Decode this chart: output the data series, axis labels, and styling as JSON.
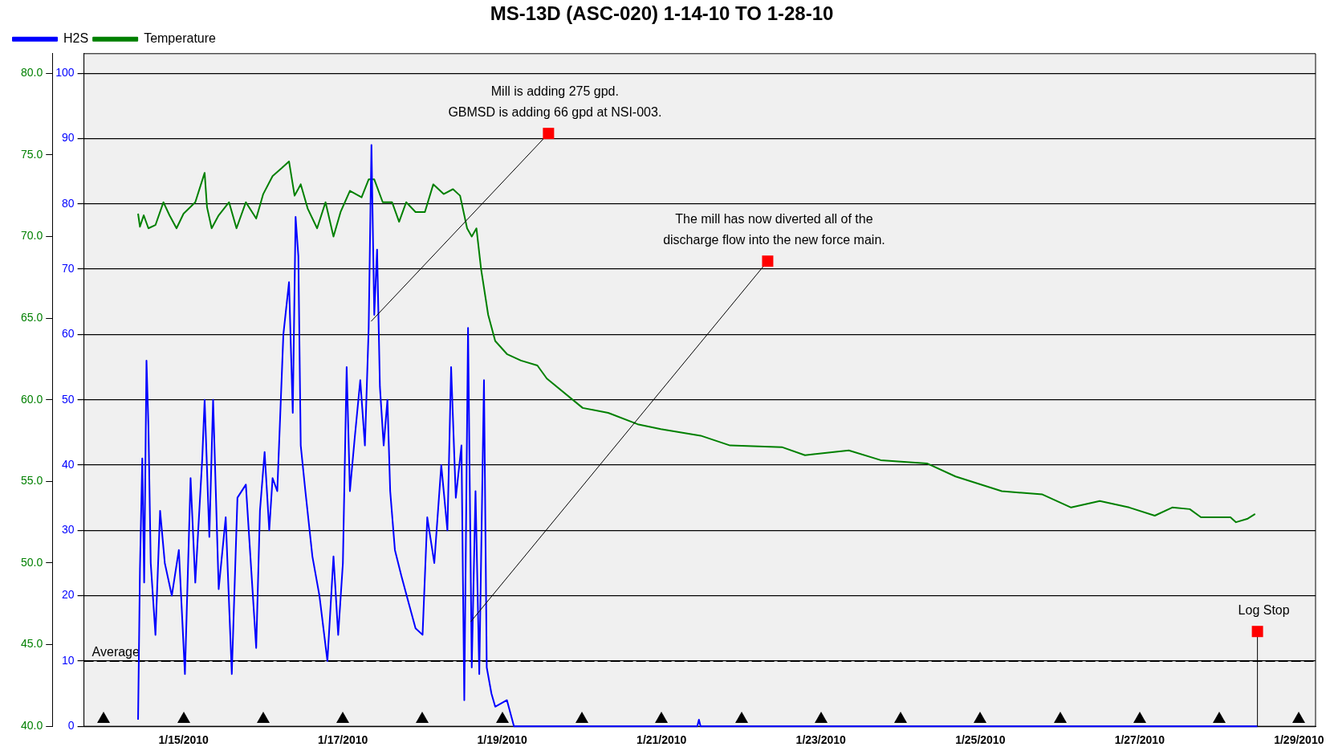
{
  "chart_data": {
    "type": "line",
    "title": "MS-13D (ASC-020) 1-14-10 TO 1-28-10",
    "xlim": [
      "2010-01-13T18:00",
      "2010-01-29T05:00"
    ],
    "xticks": [
      {
        "value": "2010-01-15",
        "label": "1/15/2010"
      },
      {
        "value": "2010-01-17",
        "label": "1/17/2010"
      },
      {
        "value": "2010-01-19",
        "label": "1/19/2010"
      },
      {
        "value": "2010-01-21",
        "label": "1/21/2010"
      },
      {
        "value": "2010-01-23",
        "label": "1/23/2010"
      },
      {
        "value": "2010-01-25",
        "label": "1/25/2010"
      },
      {
        "value": "2010-01-27",
        "label": "1/27/2010"
      },
      {
        "value": "2010-01-29",
        "label": "1/29/2010"
      }
    ],
    "ylim": [
      0,
      103
    ],
    "yticks": [
      0,
      10,
      20,
      30,
      40,
      50,
      60,
      70,
      80,
      90,
      100
    ],
    "y2lim": [
      40,
      81.2
    ],
    "y2ticks": [
      {
        "value": 40,
        "label": "40.0"
      },
      {
        "value": 45,
        "label": "45.0"
      },
      {
        "value": 50,
        "label": "50.0"
      },
      {
        "value": 55,
        "label": "55.0"
      },
      {
        "value": 60,
        "label": "60.0"
      },
      {
        "value": 65,
        "label": "65.0"
      },
      {
        "value": 70,
        "label": "70.0"
      },
      {
        "value": 75,
        "label": "75.0"
      },
      {
        "value": 80,
        "label": "80.0"
      }
    ],
    "grid": "y",
    "legend": "top left",
    "marker": "none",
    "line_style": "solid",
    "ref_lines": [
      {
        "axis": "y",
        "value": 10,
        "label": "Average",
        "color": "#000000",
        "line_style": "dashed"
      }
    ],
    "annotations": [
      {
        "text": "Mill is adding 275 gpd.\nGBMSD is adding 66 gpd at NSI-003.",
        "x": "2010-01-17T08:30",
        "y": 62
      },
      {
        "text": "The mill has now diverted all of the\ndischarge flow into the new force main.",
        "x": "2010-01-18T14:30",
        "y": 16
      },
      {
        "text": "Log Stop",
        "x": "2010-01-28T11:30",
        "y": 0
      }
    ],
    "series": [
      {
        "name": "H2S",
        "color": "#0000ff",
        "x": [
          "2010-01-14T10:18",
          "2010-01-14T10:52",
          "2010-01-14T11:34",
          "2010-01-14T12:08",
          "2010-01-14T12:50",
          "2010-01-14T13:25",
          "2010-01-14T14:07",
          "2010-01-14T15:32",
          "2010-01-14T16:56",
          "2010-01-14T18:21",
          "2010-01-14T20:28",
          "2010-01-14T22:35",
          "2010-01-15T00:25",
          "2010-01-15T02:07",
          "2010-01-15T03:32",
          "2010-01-15T05:38",
          "2010-01-15T06:21",
          "2010-01-15T07:46",
          "2010-01-15T08:54",
          "2010-01-15T10:35",
          "2010-01-15T12:42",
          "2010-01-15T14:32",
          "2010-01-15T16:14",
          "2010-01-15T18:46",
          "2010-01-15T21:53",
          "2010-01-15T23:01",
          "2010-01-16T00:25",
          "2010-01-16T01:49",
          "2010-01-16T02:49",
          "2010-01-16T04:14",
          "2010-01-16T06:04",
          "2010-01-16T07:46",
          "2010-01-16T08:54",
          "2010-01-16T09:45",
          "2010-01-16T10:35",
          "2010-01-16T11:18",
          "2010-01-16T12:42",
          "2010-01-16T14:49",
          "2010-01-16T16:56",
          "2010-01-16T19:20",
          "2010-01-16T21:10",
          "2010-01-16T22:35",
          "2010-01-17T00:00",
          "2010-01-17T01:08",
          "2010-01-17T02:07",
          "2010-01-17T03:32",
          "2010-01-17T05:14",
          "2010-01-17T06:38",
          "2010-01-17T07:46",
          "2010-01-17T08:36",
          "2010-01-17T09:27",
          "2010-01-17T10:18",
          "2010-01-17T11:09",
          "2010-01-17T12:17",
          "2010-01-17T13:25",
          "2010-01-17T14:15",
          "2010-01-17T15:40",
          "2010-01-17T17:38",
          "2010-01-17T19:45",
          "2010-01-17T21:53",
          "2010-01-18T00:00",
          "2010-01-18T01:25",
          "2010-01-18T03:32",
          "2010-01-18T05:38",
          "2010-01-18T07:29",
          "2010-01-18T08:36",
          "2010-01-18T10:01",
          "2010-01-18T11:43",
          "2010-01-18T12:34",
          "2010-01-18T13:42",
          "2010-01-18T14:49",
          "2010-01-18T15:57",
          "2010-01-18T17:05",
          "2010-01-18T18:30",
          "2010-01-18T19:20",
          "2010-01-18T20:45",
          "2010-01-18T21:53",
          "2010-01-19T01:25",
          "2010-01-19T03:32",
          "2010-01-19T06:00",
          "2010-01-21T10:45",
          "2010-01-21T11:15",
          "2010-01-21T11:45",
          "2010-01-28T11:30"
        ],
        "values": [
          1,
          24,
          41,
          22,
          56,
          46,
          25,
          14,
          33,
          25,
          20,
          27,
          8,
          38,
          22,
          41,
          50,
          29,
          50,
          21,
          32,
          8,
          35,
          37,
          12,
          33,
          42,
          30,
          38,
          36,
          60,
          68,
          48,
          78,
          72,
          43,
          36,
          26,
          20,
          10,
          26,
          14,
          25,
          55,
          36,
          44,
          53,
          43,
          61,
          89,
          63,
          73,
          52,
          43,
          50,
          36,
          27,
          23,
          19,
          15,
          14,
          32,
          25,
          40,
          30,
          55,
          35,
          43,
          4,
          61,
          9,
          36,
          8,
          53,
          9,
          5,
          3,
          4,
          0,
          0,
          0,
          1,
          0,
          0
        ]
      },
      {
        "name": "Temperature",
        "color": "#008000",
        "axis": "y2",
        "x": [
          "2010-01-14T10:18",
          "2010-01-14T10:52",
          "2010-01-14T12:00",
          "2010-01-14T13:25",
          "2010-01-14T15:32",
          "2010-01-14T17:56",
          "2010-01-14T19:46",
          "2010-01-14T21:53",
          "2010-01-15T00:00",
          "2010-01-15T03:32",
          "2010-01-15T06:21",
          "2010-01-15T07:04",
          "2010-01-15T08:28",
          "2010-01-15T10:35",
          "2010-01-15T13:42",
          "2010-01-15T15:57",
          "2010-01-15T18:46",
          "2010-01-15T21:53",
          "2010-01-16T00:00",
          "2010-01-16T02:49",
          "2010-01-16T05:38",
          "2010-01-16T07:46",
          "2010-01-16T09:27",
          "2010-01-16T11:18",
          "2010-01-16T13:25",
          "2010-01-16T16:14",
          "2010-01-16T18:46",
          "2010-01-16T21:10",
          "2010-01-16T23:18",
          "2010-01-17T02:07",
          "2010-01-17T05:38",
          "2010-01-17T07:46",
          "2010-01-17T09:27",
          "2010-01-17T12:00",
          "2010-01-17T14:49",
          "2010-01-17T16:56",
          "2010-01-17T19:04",
          "2010-01-17T21:53",
          "2010-01-18T00:42",
          "2010-01-18T03:14",
          "2010-01-18T06:21",
          "2010-01-18T09:10",
          "2010-01-18T11:18",
          "2010-01-18T13:25",
          "2010-01-18T14:49",
          "2010-01-18T16:14",
          "2010-01-18T17:38",
          "2010-01-18T19:46",
          "2010-01-18T21:53",
          "2010-01-19T01:25",
          "2010-01-19T05:38",
          "2010-01-19T10:35",
          "2010-01-19T13:25",
          "2010-01-20T00:14",
          "2010-01-20T07:55",
          "2010-01-20T16:48",
          "2010-01-20T23:46",
          "2010-01-21T11:46",
          "2010-01-21T20:38",
          "2010-01-22T12:14",
          "2010-01-22T19:12",
          "2010-01-23T08:24",
          "2010-01-23T18:00",
          "2010-01-24T07:55",
          "2010-01-24T16:34",
          "2010-01-25T06:29",
          "2010-01-25T18:43",
          "2010-01-26T03:22",
          "2010-01-26T12:00",
          "2010-01-26T20:53",
          "2010-01-27T04:34",
          "2010-01-27T09:50",
          "2010-01-27T15:07",
          "2010-01-27T18:29",
          "2010-01-28T03:22",
          "2010-01-28T05:02",
          "2010-01-28T08:24",
          "2010-01-28T10:48"
        ],
        "values": [
          71.4,
          70.6,
          71.3,
          70.5,
          70.7,
          72.1,
          71.3,
          70.5,
          71.4,
          72.1,
          73.9,
          71.8,
          70.5,
          71.3,
          72.1,
          70.5,
          72.1,
          71.1,
          72.6,
          73.7,
          74.2,
          74.6,
          72.5,
          73.2,
          71.7,
          70.5,
          72.1,
          70.0,
          71.5,
          72.8,
          72.4,
          73.5,
          73.5,
          72.1,
          72.1,
          70.9,
          72.1,
          71.5,
          71.5,
          73.2,
          72.6,
          72.9,
          72.5,
          70.5,
          70.0,
          70.5,
          68.0,
          65.2,
          63.6,
          62.8,
          62.4,
          62.1,
          61.3,
          59.5,
          59.2,
          58.5,
          58.2,
          57.8,
          57.2,
          57.1,
          56.6,
          56.9,
          56.3,
          56.1,
          55.3,
          54.4,
          54.2,
          53.4,
          53.8,
          53.4,
          52.9,
          53.4,
          53.3,
          52.8,
          52.8,
          52.5,
          52.7,
          53.0
        ]
      }
    ]
  }
}
